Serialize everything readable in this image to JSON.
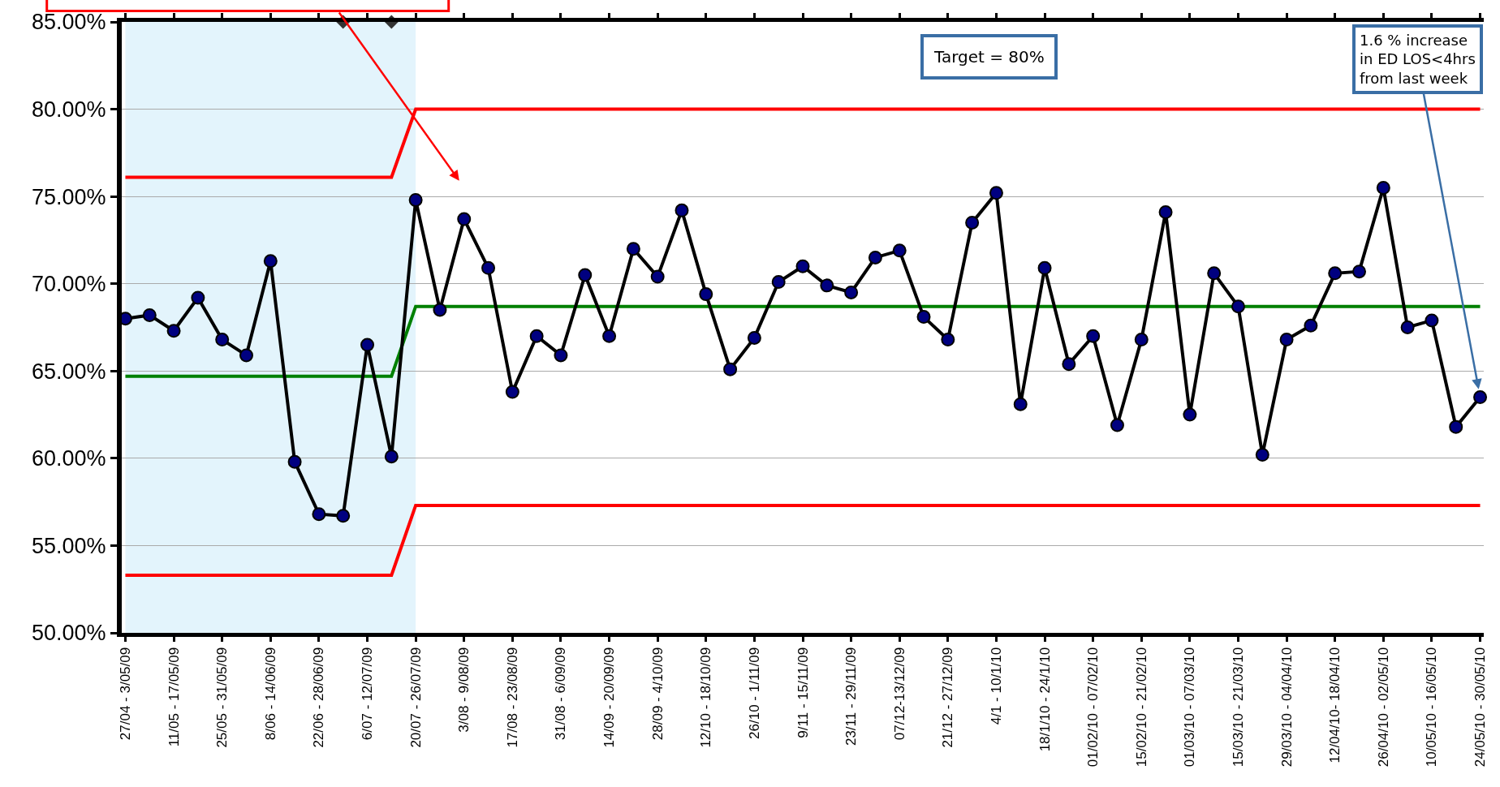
{
  "chart_data": {
    "type": "line",
    "categories": [
      "27/04 - 3/05/09",
      null,
      "11/05 - 17/05/09",
      null,
      "25/05 - 31/05/09",
      null,
      "8/06 - 14/06/09",
      null,
      "22/06 - 28/06/09",
      null,
      "6/07 - 12/07/09",
      null,
      "20/07 - 26/07/09",
      null,
      "3/08 - 9/08/09",
      null,
      "17/08 - 23/08/09",
      null,
      "31/08 - 6/09/09",
      null,
      "14/09 - 20/09/09",
      null,
      "28/09 - 4/10/09",
      null,
      "12/10 - 18/10/09",
      null,
      "26/10 - 1/11/09",
      null,
      "9/11 - 15/11/09",
      null,
      "23/11 - 29/11/09",
      null,
      "07/12-13/12/09",
      null,
      "21/12 - 27/12/09",
      null,
      "4/1 - 10/1/10",
      null,
      "18/1/10 - 24/1/10",
      null,
      "01/02/10 - 07/02/10",
      null,
      "15/02/10 - 21/02/10",
      null,
      "01/03/10 - 07/03/10",
      null,
      "15/03/10 - 21/03/10",
      null,
      "29/03/10 - 04/04/10",
      null,
      "12/04/10- 18/04/10",
      null,
      "26/04/10 - 02/05/10",
      null,
      "10/05/10 - 16/05/10",
      null,
      "24/05/10 - 30/05/10"
    ],
    "series": [
      {
        "type": "line",
        "color": "#ff0000",
        "marker": "none",
        "values": [
          76.1,
          76.1,
          76.1,
          76.1,
          76.1,
          76.1,
          76.1,
          76.1,
          76.1,
          76.1,
          76.1,
          76.1,
          80.0,
          80.0,
          80.0,
          80.0,
          80.0,
          80.0,
          80.0,
          80.0,
          80.0,
          80.0,
          80.0,
          80.0,
          80.0,
          80.0,
          80.0,
          80.0,
          80.0,
          80.0,
          80.0,
          80.0,
          80.0,
          80.0,
          80.0,
          80.0,
          80.0,
          80.0,
          80.0,
          80.0,
          80.0,
          80.0,
          80.0,
          80.0,
          80.0,
          80.0,
          80.0,
          80.0,
          80.0,
          80.0,
          80.0,
          80.0,
          80.0,
          80.0,
          80.0,
          80.0,
          80.0
        ]
      },
      {
        "type": "line",
        "color": "#008000",
        "marker": "none",
        "values": [
          64.7,
          64.7,
          64.7,
          64.7,
          64.7,
          64.7,
          64.7,
          64.7,
          64.7,
          64.7,
          64.7,
          64.7,
          68.7,
          68.7,
          68.7,
          68.7,
          68.7,
          68.7,
          68.7,
          68.7,
          68.7,
          68.7,
          68.7,
          68.7,
          68.7,
          68.7,
          68.7,
          68.7,
          68.7,
          68.7,
          68.7,
          68.7,
          68.7,
          68.7,
          68.7,
          68.7,
          68.7,
          68.7,
          68.7,
          68.7,
          68.7,
          68.7,
          68.7,
          68.7,
          68.7,
          68.7,
          68.7,
          68.7,
          68.7,
          68.7,
          68.7,
          68.7,
          68.7,
          68.7,
          68.7,
          68.7,
          68.7
        ]
      },
      {
        "type": "line",
        "color": "#ff0000",
        "marker": "none",
        "values": [
          53.3,
          53.3,
          53.3,
          53.3,
          53.3,
          53.3,
          53.3,
          53.3,
          53.3,
          53.3,
          53.3,
          53.3,
          57.3,
          57.3,
          57.3,
          57.3,
          57.3,
          57.3,
          57.3,
          57.3,
          57.3,
          57.3,
          57.3,
          57.3,
          57.3,
          57.3,
          57.3,
          57.3,
          57.3,
          57.3,
          57.3,
          57.3,
          57.3,
          57.3,
          57.3,
          57.3,
          57.3,
          57.3,
          57.3,
          57.3,
          57.3,
          57.3,
          57.3,
          57.3,
          57.3,
          57.3,
          57.3,
          57.3,
          57.3,
          57.3,
          57.3,
          57.3,
          57.3,
          57.3,
          57.3,
          57.3,
          57.3
        ]
      },
      {
        "type": "line",
        "color": "#000080",
        "marker": "circle",
        "values": [
          68.0,
          68.2,
          67.3,
          69.2,
          66.8,
          65.9,
          71.3,
          59.8,
          56.8,
          56.7,
          66.5,
          60.1,
          74.8,
          68.5,
          73.7,
          70.9,
          63.8,
          67.0,
          65.9,
          70.5,
          67.0,
          72.0,
          70.4,
          74.2,
          69.4,
          65.1,
          66.9,
          70.1,
          71.0,
          69.9,
          69.5,
          71.5,
          71.9,
          68.1,
          66.8,
          73.5,
          75.2,
          63.1,
          70.9,
          65.4,
          67.0,
          61.9,
          66.8,
          74.1,
          62.5,
          70.6,
          68.7,
          60.2,
          66.8,
          67.6,
          70.6,
          70.7,
          75.5,
          67.5,
          67.9,
          61.8,
          63.5
        ]
      },
      {
        "type": "scatter",
        "color": "#333333",
        "marker": "diamond",
        "values": [
          null,
          null,
          null,
          null,
          null,
          null,
          null,
          null,
          null,
          85,
          null,
          85,
          null,
          null,
          null,
          null,
          null,
          null,
          null,
          null,
          null,
          null,
          null,
          null,
          null,
          null,
          null,
          null,
          null,
          null,
          null,
          null,
          null,
          null,
          null,
          null,
          null,
          null,
          null,
          null,
          null,
          null,
          null,
          null,
          null,
          null,
          null,
          null,
          null,
          null,
          null,
          null,
          null,
          null,
          null,
          null,
          null
        ]
      }
    ],
    "ylim": [
      50,
      85
    ],
    "yticks": [
      {
        "value": 50,
        "label": "50.00%"
      },
      {
        "value": 55,
        "label": "55.00%"
      },
      {
        "value": 60,
        "label": "60.00%"
      },
      {
        "value": 65,
        "label": "65.00%"
      },
      {
        "value": 70,
        "label": "70.00%"
      },
      {
        "value": 75,
        "label": "75.00%"
      },
      {
        "value": 80,
        "label": "80.00%"
      },
      {
        "value": 85,
        "label": "85.00%"
      }
    ],
    "grid": "y",
    "bands": [
      {
        "axis": "x",
        "from": "27/04 - 3/05/09",
        "to": "20/07 - 26/07/09",
        "color": "#e3f4fc"
      }
    ],
    "annotations": [
      "Target = 80%",
      {
        "text": "1.6 % increase in ED LOS<4hrs from last week",
        "x": "24/05/10 - 30/05/10",
        "y": 63.5
      }
    ]
  }
}
